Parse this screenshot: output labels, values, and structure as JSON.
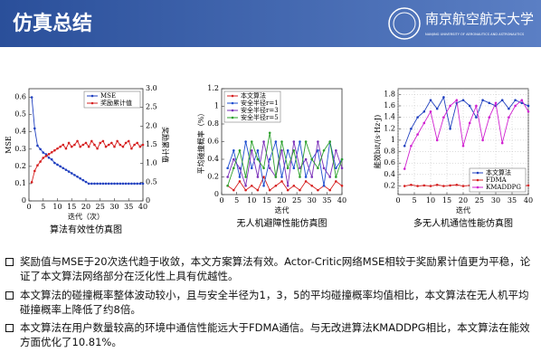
{
  "header": {
    "title": "仿真总结",
    "university": "南京航空航天大学",
    "university_en": "NANJING UNIVERSITY OF AERONAUTICS AND ASTRONAUTICS"
  },
  "chart_data": [
    {
      "type": "line",
      "caption": "算法有效性仿真图",
      "xlabel": "迭代（次）",
      "ylabel": "MSE",
      "y2label": "奖励累计值",
      "xlim": [
        0,
        40
      ],
      "xticks": [
        0,
        5,
        10,
        15,
        20,
        25,
        30,
        35,
        40
      ],
      "ylim": [
        0,
        0.65
      ],
      "yticks": [
        0,
        0.1,
        0.2,
        0.3,
        0.4,
        0.5,
        0.6
      ],
      "y2lim": [
        0,
        3.0
      ],
      "y2ticks": [
        0,
        0.5,
        {
          "value": 1,
          "label": "1.0"
        },
        1.5,
        {
          "value": 2,
          "label": "2.0"
        },
        2.5,
        {
          "value": 3,
          "label": "3.0"
        }
      ],
      "grid": false,
      "legend": "upper right",
      "x": [
        1,
        2,
        3,
        4,
        5,
        6,
        7,
        8,
        9,
        10,
        11,
        12,
        13,
        14,
        15,
        16,
        17,
        18,
        19,
        20,
        21,
        22,
        23,
        24,
        25,
        26,
        27,
        28,
        29,
        30,
        31,
        32,
        33,
        34,
        35,
        36,
        37,
        38,
        39,
        40
      ],
      "series": [
        {
          "name": "MSE",
          "color": "#1f3fbf",
          "values": [
            0.6,
            0.42,
            0.32,
            0.3,
            0.28,
            0.27,
            0.25,
            0.24,
            0.22,
            0.21,
            0.2,
            0.19,
            0.18,
            0.17,
            0.16,
            0.15,
            0.14,
            0.13,
            0.12,
            0.11,
            0.1,
            0.1,
            0.1,
            0.1,
            0.1,
            0.1,
            0.1,
            0.1,
            0.1,
            0.1,
            0.1,
            0.1,
            0.1,
            0.1,
            0.1,
            0.1,
            0.1,
            0.1,
            0.1,
            0.1
          ]
        },
        {
          "name": "奖励累计值",
          "color": "#d62020",
          "axis": "y2",
          "values": [
            0.5,
            0.8,
            0.95,
            1.05,
            1.15,
            1.2,
            1.25,
            1.3,
            1.35,
            1.4,
            1.45,
            1.5,
            1.4,
            1.55,
            1.45,
            1.5,
            1.6,
            1.45,
            1.5,
            1.55,
            1.45,
            1.6,
            1.5,
            1.4,
            1.55,
            1.6,
            1.45,
            1.5,
            1.55,
            1.45,
            1.6,
            1.5,
            1.45,
            1.55,
            1.6,
            1.4,
            1.5,
            1.55,
            1.45,
            1.5
          ]
        }
      ]
    },
    {
      "type": "line",
      "caption": "无人机避障性能仿真图",
      "xlabel": "迭代",
      "ylabel": "平均碰撞概率（%）",
      "xlim": [
        0,
        40
      ],
      "xticks": [
        0,
        5,
        10,
        15,
        20,
        25,
        30,
        35,
        40
      ],
      "ylim": [
        0,
        1.2
      ],
      "yticks": [
        0,
        0.2,
        0.4,
        0.6,
        0.8,
        1,
        1.2
      ],
      "grid": false,
      "legend": "upper left",
      "x": [
        2,
        4,
        6,
        8,
        10,
        12,
        14,
        16,
        18,
        20,
        22,
        24,
        26,
        28,
        30,
        32,
        34,
        36,
        38,
        40
      ],
      "series": [
        {
          "name": "本文算法",
          "color": "#d62020",
          "values": [
            0.1,
            0.05,
            0.15,
            0.05,
            0.1,
            0.05,
            0.2,
            0.05,
            0.1,
            0.15,
            0.05,
            0.1,
            0.05,
            0.15,
            0.1,
            0.05,
            0.1,
            0.05,
            0.15,
            0.1
          ]
        },
        {
          "name": "安全半径r=1",
          "color": "#1f4fd0",
          "values": [
            0.3,
            0.5,
            0.2,
            0.6,
            0.3,
            0.5,
            0.1,
            0.4,
            0.6,
            0.2,
            0.5,
            0.3,
            0.6,
            0.2,
            0.4,
            0.5,
            0.1,
            0.6,
            0.3,
            0.4
          ]
        },
        {
          "name": "安全半径r=3",
          "color": "#7a2fb8",
          "values": [
            0.2,
            0.4,
            0.3,
            0.1,
            0.5,
            0.2,
            0.6,
            0.3,
            0.2,
            0.5,
            0.1,
            0.6,
            0.3,
            0.4,
            0.2,
            0.6,
            0.3,
            0.2,
            0.5,
            0.3
          ]
        },
        {
          "name": "安全半径r=5",
          "color": "#2ca02c",
          "values": [
            0.1,
            0.3,
            0.5,
            0.2,
            0.6,
            0.4,
            0.3,
            0.7,
            0.2,
            0.6,
            0.3,
            0.5,
            0.2,
            0.6,
            0.4,
            0.3,
            0.5,
            0.6,
            0.2,
            0.4
          ]
        }
      ]
    },
    {
      "type": "line",
      "caption": "多无人机通信性能仿真图",
      "xlabel": "迭代",
      "ylabel": "能效bit/(s·Hz·J)",
      "xlim": [
        0,
        40
      ],
      "xticks": [
        0,
        5,
        10,
        15,
        20,
        25,
        30,
        35,
        40
      ],
      "ylim": [
        0.05,
        1.9
      ],
      "yticks": [
        0.2,
        0.4,
        0.6,
        0.8,
        1,
        1.2,
        1.4,
        1.6,
        1.8
      ],
      "grid": true,
      "legend": "lower right",
      "x": [
        2,
        4,
        6,
        8,
        10,
        12,
        14,
        16,
        18,
        20,
        22,
        24,
        26,
        28,
        30,
        32,
        34,
        36,
        38,
        40
      ],
      "series": [
        {
          "name": "本文算法",
          "color": "#1f3fbf",
          "values": [
            0.9,
            1.2,
            1.4,
            1.5,
            1.7,
            1.55,
            1.75,
            1.2,
            1.65,
            1.7,
            1.6,
            1.4,
            1.7,
            1.65,
            1.6,
            1.7,
            1.55,
            1.7,
            1.65,
            1.6
          ]
        },
        {
          "name": "FDMA",
          "color": "#d62020",
          "values": [
            0.2,
            0.22,
            0.2,
            0.21,
            0.2,
            0.22,
            0.2,
            0.21,
            0.22,
            0.2,
            0.21,
            0.2,
            0.22,
            0.2,
            0.21,
            0.2,
            0.22,
            0.21,
            0.2,
            0.21
          ]
        },
        {
          "name": "KMADDPG",
          "color": "#d020d0",
          "values": [
            0.5,
            0.9,
            1.1,
            1.3,
            1.5,
            1.0,
            1.4,
            1.6,
            1.7,
            0.9,
            1.3,
            1.6,
            1.0,
            1.4,
            1.65,
            0.95,
            1.4,
            1.6,
            1.7,
            1.5
          ]
        }
      ]
    }
  ],
  "bullets": [
    "奖励值与MSE于20次迭代趋于收敛，本文方案算法有效。Actor-Critic网络MSE相较于奖励累计值更为平稳，论证了本文算法网络部分在泛化性上具有优越性。",
    "本文算法的碰撞概率整体波动较小，且与安全半径为1，3，5的平均碰撞概率均值相比，本文算法在无人机平均碰撞概率上降低了约8倍。",
    "本文算法在用户数量较高的环境中通信性能远大于FDMA通信。与无改进算法KMADDPG相比，本文算法在能效方面优化了10.81%。"
  ]
}
